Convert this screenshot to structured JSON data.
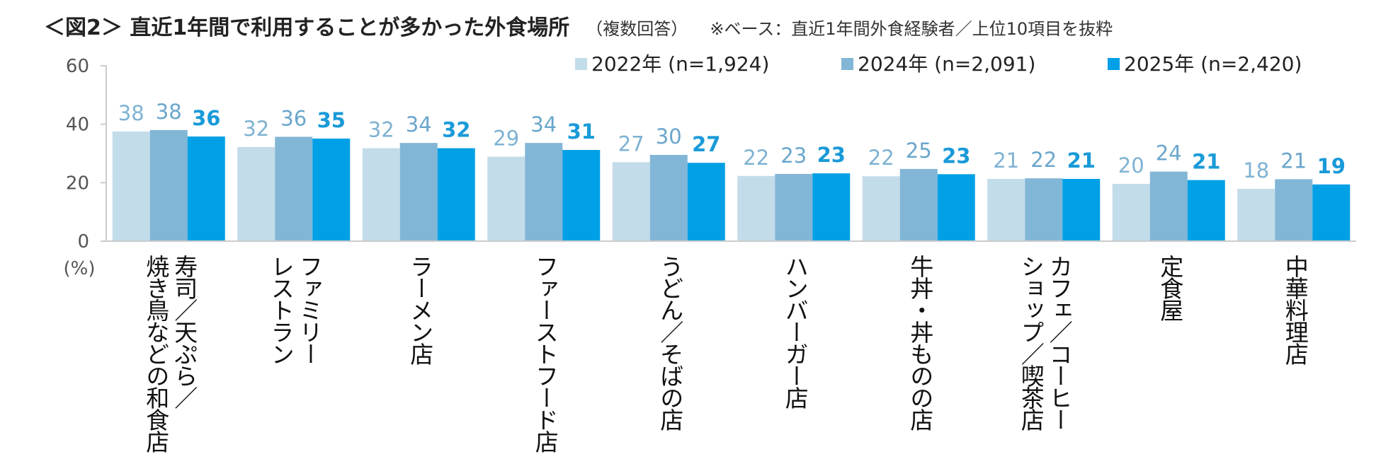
{
  "title": {
    "main": "＜図2＞ 直近1年間で利用することが多かった外食場所",
    "sub": "（複数回答）",
    "note": "※ベース：直近1年間外食経験者／上位10項目を抜粋"
  },
  "colors": {
    "s2022": "#c3dcea",
    "s2024": "#82b6d6",
    "s2025": "#00a0e6",
    "label2022": "#7eb2d2",
    "label2024": "#6aa6cc",
    "label2025": "#1a9ad8",
    "axis": "#cccccc"
  },
  "chart_data": {
    "type": "bar",
    "ylabel": "(%)",
    "ylim": [
      0,
      60
    ],
    "yticks": [
      0,
      20,
      40,
      60
    ],
    "legend_position": "top-right",
    "categories": [
      [
        "寿司／天ぷら／",
        "焼き鳥などの和食店"
      ],
      [
        "ファミリー",
        "レストラン"
      ],
      [
        "ラーメン店"
      ],
      [
        "ファーストフード店"
      ],
      [
        "うどん／そばの店"
      ],
      [
        "ハンバーガー店"
      ],
      [
        "牛丼・丼ものの店"
      ],
      [
        "カフェ／コーヒー",
        "ショップ／喫茶店"
      ],
      [
        "定食屋"
      ],
      [
        "中華料理店"
      ]
    ],
    "series": [
      {
        "name": "2022年 (n=1,924)",
        "values": [
          37.5,
          32.2,
          31.8,
          28.9,
          27.0,
          22.3,
          22.2,
          21.3,
          19.6,
          17.9
        ],
        "labels": [
          "38",
          "32",
          "32",
          "29",
          "27",
          "22",
          "22",
          "21",
          "20",
          "18"
        ]
      },
      {
        "name": "2024年 (n=2,091)",
        "values": [
          38.0,
          35.7,
          33.6,
          33.6,
          29.5,
          23.0,
          24.7,
          21.5,
          23.8,
          21.2
        ],
        "labels": [
          "38",
          "36",
          "34",
          "34",
          "30",
          "23",
          "25",
          "22",
          "24",
          "21"
        ]
      },
      {
        "name": "2025年 (n=2,420)",
        "values": [
          35.8,
          35.1,
          31.8,
          31.2,
          26.8,
          23.2,
          22.9,
          21.3,
          20.9,
          19.4
        ],
        "labels": [
          "36",
          "35",
          "32",
          "31",
          "27",
          "23",
          "23",
          "21",
          "21",
          "19"
        ]
      }
    ]
  }
}
